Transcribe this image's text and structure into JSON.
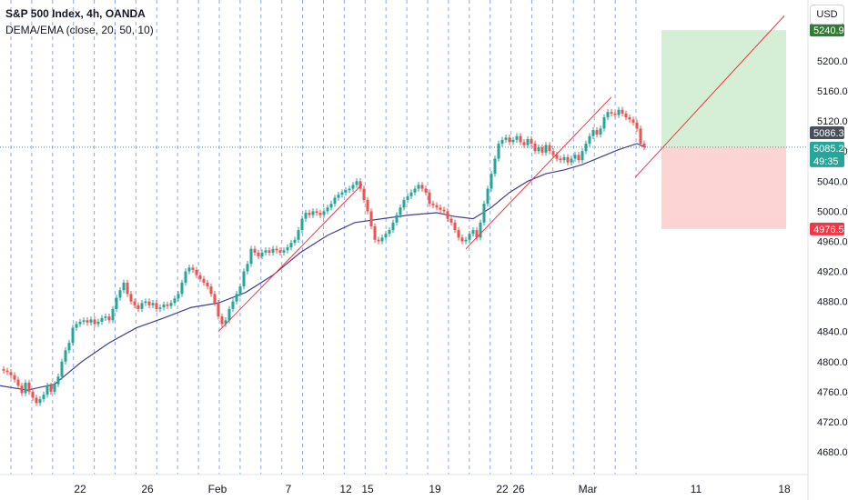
{
  "header": {
    "title": "S&P 500 Index, 4h, OANDA",
    "indicator": "DEMA/EMA (close, 20, 50, 10)",
    "currency_button": "USD"
  },
  "colors": {
    "up": "#26a69a",
    "down": "#ef5350",
    "ema_line": "#3f3f8f",
    "trend_line": "#f23645",
    "profit_zone": "#cdeccf",
    "loss_zone": "#fdcfcf",
    "vertical_dash": "#2962ff"
  },
  "chart_data": {
    "type": "candlestick",
    "symbol": "S&P 500 Index",
    "interval": "4h",
    "source": "OANDA",
    "y_axis": {
      "ticks": [
        "5200.0",
        "5160.0",
        "5120.0",
        "5080.0",
        "5040.0",
        "5000.0",
        "4960.0",
        "4920.0",
        "4880.0",
        "4840.0",
        "4800.0",
        "4760.0",
        "4720.0",
        "4680.0"
      ],
      "range": [
        4660,
        5270
      ]
    },
    "x_axis": {
      "labels": [
        "22",
        "26",
        "Feb",
        "7",
        "12",
        "15",
        "19",
        "22",
        "26",
        "Mar",
        "11",
        "18"
      ]
    },
    "price_tags": {
      "target": "5240.9",
      "high_price": "5086.3",
      "last_price": "5085.2",
      "countdown": "49:35",
      "stop": "4976.5"
    },
    "position": {
      "entry": 5085.2,
      "target": 5240.9,
      "stop": 4976.5
    },
    "candles_close_path": [
      [
        0,
        4790
      ],
      [
        4,
        4788
      ],
      [
        8,
        4786
      ],
      [
        12,
        4782
      ],
      [
        16,
        4776
      ],
      [
        20,
        4768
      ],
      [
        24,
        4758
      ],
      [
        28,
        4772
      ],
      [
        32,
        4760
      ],
      [
        36,
        4752
      ],
      [
        40,
        4745
      ],
      [
        44,
        4750
      ],
      [
        48,
        4756
      ],
      [
        52,
        4768
      ],
      [
        56,
        4760
      ],
      [
        60,
        4770
      ],
      [
        64,
        4780
      ],
      [
        68,
        4800
      ],
      [
        72,
        4815
      ],
      [
        76,
        4825
      ],
      [
        80,
        4845
      ],
      [
        84,
        4850
      ],
      [
        88,
        4853
      ],
      [
        92,
        4855
      ],
      [
        96,
        4852
      ],
      [
        100,
        4856
      ],
      [
        104,
        4850
      ],
      [
        108,
        4853
      ],
      [
        112,
        4858
      ],
      [
        116,
        4860
      ],
      [
        120,
        4855
      ],
      [
        124,
        4870
      ],
      [
        128,
        4885
      ],
      [
        132,
        4895
      ],
      [
        136,
        4905
      ],
      [
        140,
        4890
      ],
      [
        144,
        4880
      ],
      [
        148,
        4875
      ],
      [
        152,
        4870
      ],
      [
        156,
        4878
      ],
      [
        160,
        4880
      ],
      [
        164,
        4875
      ],
      [
        168,
        4878
      ],
      [
        172,
        4870
      ],
      [
        176,
        4872
      ],
      [
        180,
        4876
      ],
      [
        184,
        4874
      ],
      [
        188,
        4878
      ],
      [
        192,
        4884
      ],
      [
        196,
        4890
      ],
      [
        200,
        4905
      ],
      [
        204,
        4920
      ],
      [
        208,
        4925
      ],
      [
        212,
        4922
      ],
      [
        216,
        4915
      ],
      [
        220,
        4910
      ],
      [
        224,
        4905
      ],
      [
        228,
        4900
      ],
      [
        232,
        4890
      ],
      [
        236,
        4878
      ],
      [
        240,
        4860
      ],
      [
        244,
        4850
      ],
      [
        248,
        4855
      ],
      [
        252,
        4870
      ],
      [
        256,
        4880
      ],
      [
        260,
        4890
      ],
      [
        264,
        4900
      ],
      [
        268,
        4920
      ],
      [
        272,
        4930
      ],
      [
        276,
        4950
      ],
      [
        280,
        4945
      ],
      [
        284,
        4940
      ],
      [
        288,
        4945
      ],
      [
        292,
        4948
      ],
      [
        296,
        4945
      ],
      [
        300,
        4950
      ],
      [
        304,
        4948
      ],
      [
        308,
        4945
      ],
      [
        312,
        4948
      ],
      [
        316,
        4952
      ],
      [
        320,
        4958
      ],
      [
        324,
        4962
      ],
      [
        328,
        4975
      ],
      [
        332,
        4990
      ],
      [
        336,
        4998
      ],
      [
        340,
        4995
      ],
      [
        344,
        5000
      ],
      [
        348,
        4998
      ],
      [
        352,
        4995
      ],
      [
        356,
        5000
      ],
      [
        360,
        5005
      ],
      [
        364,
        5010
      ],
      [
        368,
        5018
      ],
      [
        372,
        5022
      ],
      [
        376,
        5025
      ],
      [
        380,
        5028
      ],
      [
        384,
        5030
      ],
      [
        388,
        5035
      ],
      [
        392,
        5040
      ],
      [
        396,
        5030
      ],
      [
        400,
        5015
      ],
      [
        404,
        5000
      ],
      [
        408,
        4980
      ],
      [
        412,
        4962
      ],
      [
        416,
        4960
      ],
      [
        420,
        4965
      ],
      [
        424,
        4970
      ],
      [
        428,
        4975
      ],
      [
        432,
        4985
      ],
      [
        436,
        4995
      ],
      [
        440,
        5005
      ],
      [
        444,
        5015
      ],
      [
        448,
        5020
      ],
      [
        452,
        5025
      ],
      [
        456,
        5030
      ],
      [
        460,
        5035
      ],
      [
        464,
        5030
      ],
      [
        468,
        5025
      ],
      [
        472,
        5010
      ],
      [
        476,
        5008
      ],
      [
        480,
        5005
      ],
      [
        484,
        5002
      ],
      [
        488,
        5000
      ],
      [
        492,
        4990
      ],
      [
        496,
        4985
      ],
      [
        500,
        4975
      ],
      [
        504,
        4965
      ],
      [
        508,
        4960
      ],
      [
        512,
        4962
      ],
      [
        516,
        4970
      ],
      [
        520,
        4975
      ],
      [
        524,
        4965
      ],
      [
        528,
        4985
      ],
      [
        532,
        5010
      ],
      [
        536,
        5030
      ],
      [
        540,
        5050
      ],
      [
        544,
        5070
      ],
      [
        548,
        5090
      ],
      [
        552,
        5095
      ],
      [
        556,
        5098
      ],
      [
        560,
        5092
      ],
      [
        564,
        5095
      ],
      [
        568,
        5100
      ],
      [
        572,
        5092
      ],
      [
        576,
        5088
      ],
      [
        580,
        5096
      ],
      [
        584,
        5090
      ],
      [
        588,
        5080
      ],
      [
        592,
        5085
      ],
      [
        596,
        5078
      ],
      [
        600,
        5088
      ],
      [
        604,
        5080
      ],
      [
        608,
        5075
      ],
      [
        612,
        5070
      ],
      [
        616,
        5068
      ],
      [
        620,
        5072
      ],
      [
        624,
        5065
      ],
      [
        628,
        5070
      ],
      [
        632,
        5075
      ],
      [
        636,
        5068
      ],
      [
        640,
        5080
      ],
      [
        644,
        5090
      ],
      [
        648,
        5100
      ],
      [
        652,
        5108
      ],
      [
        656,
        5102
      ],
      [
        660,
        5110
      ],
      [
        664,
        5125
      ],
      [
        668,
        5132
      ],
      [
        672,
        5130
      ],
      [
        676,
        5128
      ],
      [
        680,
        5135
      ],
      [
        684,
        5130
      ],
      [
        688,
        5125
      ],
      [
        692,
        5122
      ],
      [
        696,
        5118
      ],
      [
        700,
        5110
      ],
      [
        704,
        5090
      ],
      [
        708,
        5085
      ]
    ],
    "ema_path": [
      [
        0,
        4768
      ],
      [
        30,
        4762
      ],
      [
        60,
        4770
      ],
      [
        90,
        4800
      ],
      [
        120,
        4825
      ],
      [
        150,
        4845
      ],
      [
        180,
        4858
      ],
      [
        210,
        4872
      ],
      [
        240,
        4878
      ],
      [
        270,
        4892
      ],
      [
        300,
        4915
      ],
      [
        330,
        4945
      ],
      [
        360,
        4968
      ],
      [
        390,
        4985
      ],
      [
        420,
        4990
      ],
      [
        450,
        4995
      ],
      [
        480,
        4998
      ],
      [
        500,
        4993
      ],
      [
        520,
        4990
      ],
      [
        540,
        5005
      ],
      [
        560,
        5025
      ],
      [
        580,
        5040
      ],
      [
        600,
        5050
      ],
      [
        620,
        5055
      ],
      [
        640,
        5062
      ],
      [
        660,
        5072
      ],
      [
        680,
        5082
      ],
      [
        700,
        5090
      ],
      [
        710,
        5085
      ]
    ],
    "trend_lines": [
      [
        [
          240,
          4840
        ],
        [
          398,
          5036
        ]
      ],
      [
        [
          512,
          4950
        ],
        [
          672,
          5152
        ]
      ],
      [
        [
          698,
          5045
        ],
        [
          862,
          5260
        ]
      ]
    ]
  }
}
